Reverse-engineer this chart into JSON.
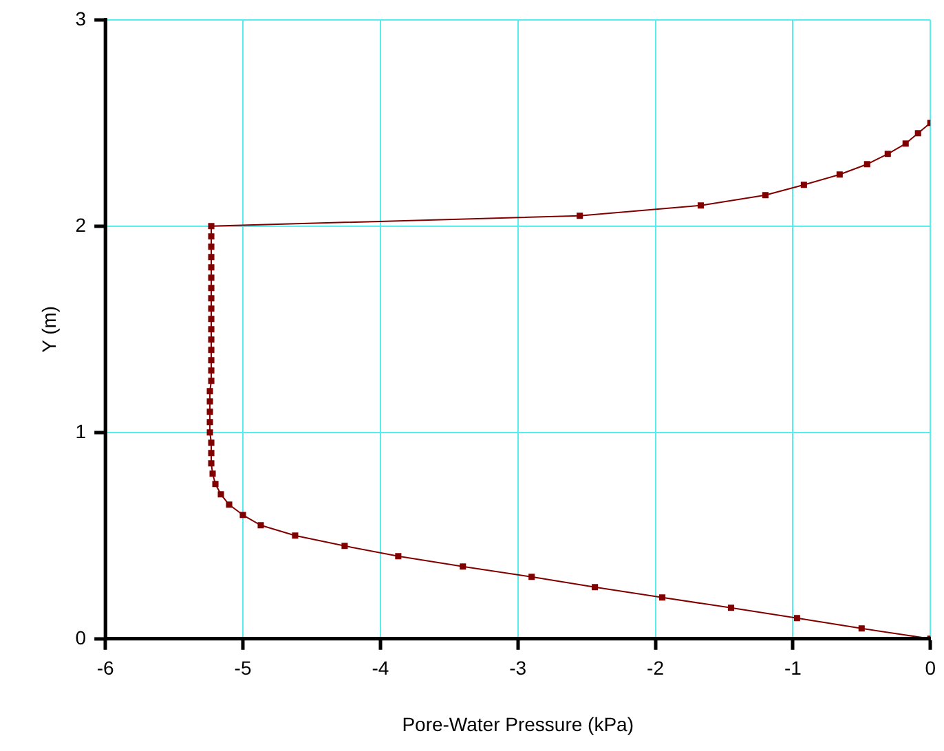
{
  "chart_data": {
    "type": "line",
    "xlabel": "Pore-Water Pressure (kPa)",
    "ylabel": "Y (m)",
    "xlim": [
      -6,
      0
    ],
    "xticks": [
      -6,
      -5,
      -4,
      -3,
      -2,
      -1,
      0
    ],
    "ylim": [
      0,
      3
    ],
    "yticks": [
      0,
      1,
      2,
      3
    ],
    "grid": true,
    "legend": false,
    "marker": "square",
    "line_style": "solid",
    "series": [
      {
        "color": "#800000",
        "x": [
          0,
          -0.5,
          -0.97,
          -1.45,
          -1.95,
          -2.44,
          -2.9,
          -3.4,
          -3.87,
          -4.26,
          -4.62,
          -4.87,
          -5.0,
          -5.1,
          -5.16,
          -5.2,
          -5.22,
          -5.23,
          -5.23,
          -5.23,
          -5.24,
          -5.24,
          -5.24,
          -5.24,
          -5.24,
          -5.23,
          -5.23,
          -5.23,
          -5.23,
          -5.23,
          -5.23,
          -5.23,
          -5.23,
          -5.23,
          -5.23,
          -5.23,
          -5.23,
          -5.23,
          -5.23,
          -5.23,
          -5.23,
          -2.55,
          -1.67,
          -1.2,
          -0.92,
          -0.66,
          -0.46,
          -0.31,
          -0.18,
          -0.09,
          0
        ],
        "values": [
          0,
          0.05,
          0.1,
          0.15,
          0.2,
          0.25,
          0.3,
          0.35,
          0.4,
          0.45,
          0.5,
          0.55,
          0.6,
          0.65,
          0.7,
          0.75,
          0.8,
          0.85,
          0.9,
          0.95,
          1.0,
          1.05,
          1.1,
          1.15,
          1.2,
          1.25,
          1.3,
          1.35,
          1.4,
          1.45,
          1.5,
          1.55,
          1.6,
          1.65,
          1.7,
          1.75,
          1.8,
          1.85,
          1.9,
          1.95,
          2.0,
          2.05,
          2.1,
          2.15,
          2.2,
          2.25,
          2.3,
          2.35,
          2.4,
          2.45,
          2.5
        ]
      }
    ]
  }
}
